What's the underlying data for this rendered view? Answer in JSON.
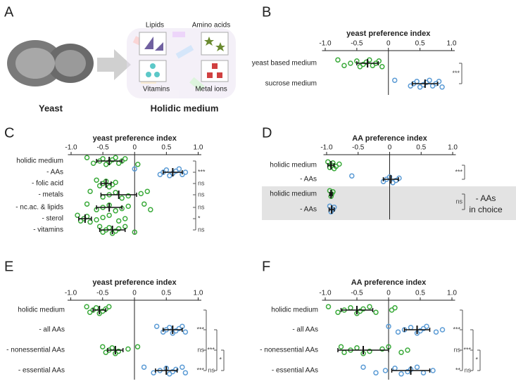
{
  "panel_a": {
    "letter": "A",
    "yeast": "Yeast",
    "medium": "Holidic medium",
    "components": [
      "Lipids",
      "Amino acids",
      "Vitamins",
      "Metal ions"
    ]
  },
  "chart_data": [
    {
      "type": "strip",
      "panel": "B",
      "title": "yeast preference index",
      "xlim": [
        -1.05,
        1.05
      ],
      "xticks": [
        {
          "value": -1,
          "label": "-1.0"
        },
        -0.5,
        0,
        0.5,
        {
          "value": 1,
          "label": "1.0"
        }
      ],
      "categories": [
        "yeast based medium",
        "sucrose medium"
      ],
      "colors": [
        "#3aaa3a",
        "#5b9bd5"
      ],
      "points": [
        [
          -0.8,
          -0.7,
          -0.6,
          -0.5,
          -0.45,
          -0.4,
          -0.35,
          -0.3,
          -0.25,
          -0.2,
          -0.15,
          -0.1
        ],
        [
          0.1,
          0.35,
          0.4,
          0.45,
          0.5,
          0.55,
          0.6,
          0.65,
          0.7,
          0.75,
          0.8,
          0.85
        ]
      ],
      "means": [
        -0.33,
        0.58
      ],
      "errors": [
        0.17,
        0.2
      ],
      "significance": [
        "***"
      ]
    },
    {
      "type": "strip",
      "panel": "C",
      "title": "yeast preference index",
      "xlim": [
        -1.05,
        1.05
      ],
      "xticks": [
        {
          "value": -1,
          "label": "-1.0"
        },
        -0.5,
        0,
        0.5,
        {
          "value": 1,
          "label": "1.0"
        }
      ],
      "categories": [
        "holidic medium",
        "- AAs",
        "- folic acid",
        "- metals",
        "- nc.ac. & lipids",
        "- sterol",
        "- vitamins"
      ],
      "colors": [
        "#3aaa3a",
        "#5b9bd5",
        "#3aaa3a",
        "#3aaa3a",
        "#3aaa3a",
        "#3aaa3a",
        "#3aaa3a"
      ],
      "points": [
        [
          -0.75,
          -0.65,
          -0.55,
          -0.5,
          -0.45,
          -0.4,
          -0.35,
          -0.3,
          -0.25,
          -0.2,
          -0.15,
          0.05
        ],
        [
          0,
          0.4,
          0.45,
          0.5,
          0.55,
          0.6,
          0.65,
          0.7,
          0.75,
          0.8
        ],
        [
          -0.6,
          -0.55,
          -0.5,
          -0.45,
          -0.4,
          -0.35,
          -0.3
        ],
        [
          -0.7,
          -0.5,
          -0.4,
          -0.3,
          -0.2,
          -0.1,
          0.1,
          0.2
        ],
        [
          -0.75,
          -0.6,
          -0.5,
          -0.4,
          -0.3,
          -0.2,
          -0.1,
          0.15,
          0.25
        ],
        [
          -0.9,
          -0.85,
          -0.8,
          -0.75,
          -0.7,
          -0.6,
          -0.5,
          -0.4,
          -0.25,
          -0.15
        ],
        [
          -0.55,
          -0.5,
          -0.45,
          -0.4,
          -0.35,
          -0.3,
          -0.25,
          -0.15,
          0
        ]
      ],
      "means": [
        -0.4,
        0.6,
        -0.45,
        -0.25,
        -0.4,
        -0.78,
        -0.35
      ],
      "errors": [
        0.2,
        0.15,
        0.08,
        0.28,
        0.2,
        0.1,
        0.2
      ],
      "significance": [
        "***",
        "ns",
        "ns",
        "ns",
        "*",
        "ns"
      ]
    },
    {
      "type": "strip",
      "panel": "D",
      "title": "AA preference index",
      "xlim": [
        -1.05,
        1.05
      ],
      "xticks": [
        {
          "value": -1,
          "label": "-1.0"
        },
        -0.5,
        0,
        0.5,
        {
          "value": 1,
          "label": "1.0"
        }
      ],
      "categories": [
        "holidic medium",
        "- AAs",
        "holidic medium",
        "- AAs"
      ],
      "colors": [
        "#3aaa3a",
        "#5b9bd5",
        "#3aaa3a",
        "#5b9bd5"
      ],
      "points": [
        [
          -0.98,
          -0.95,
          -0.92,
          -0.9,
          -0.88,
          -0.85,
          -0.8
        ],
        [
          -0.6,
          -0.1,
          -0.05,
          0,
          0.05,
          0.1,
          0.15
        ],
        [
          -0.95,
          -0.93,
          -0.92,
          -0.9
        ],
        [
          -0.95,
          -0.93,
          -0.9,
          -0.88
        ]
      ],
      "means": [
        -0.93,
        0.02,
        -0.93,
        -0.92
      ],
      "errors": [
        0.05,
        0.12,
        0.02,
        0.04
      ],
      "significance": [
        "***",
        "ns"
      ],
      "annotation": [
        "- AAs",
        "in choice"
      ]
    },
    {
      "type": "strip",
      "panel": "E",
      "title": "yeast preference index",
      "xlim": [
        -1.05,
        1.05
      ],
      "xticks": [
        {
          "value": -1,
          "label": "-1.0"
        },
        -0.5,
        0,
        0.5,
        {
          "value": 1,
          "label": "1.0"
        }
      ],
      "categories": [
        "holidic medium",
        "- all AAs",
        "- nonessential AAs",
        "- essential AAs"
      ],
      "colors": [
        "#3aaa3a",
        "#5b9bd5",
        "#3aaa3a",
        "#5b9bd5"
      ],
      "points": [
        [
          -0.75,
          -0.7,
          -0.65,
          -0.6,
          -0.55,
          -0.5,
          -0.45,
          -0.4
        ],
        [
          0.35,
          0.45,
          0.5,
          0.55,
          0.6,
          0.65,
          0.7,
          0.75,
          0.8
        ],
        [
          -0.5,
          -0.45,
          -0.4,
          -0.35,
          -0.3,
          -0.25,
          -0.1,
          0.05
        ],
        [
          0.15,
          0.3,
          0.4,
          0.5,
          0.55,
          0.6,
          0.65,
          0.75,
          0.8
        ]
      ],
      "means": [
        -0.55,
        0.6,
        -0.3,
        0.5
      ],
      "errors": [
        0.1,
        0.15,
        0.12,
        0.17
      ],
      "significance": [
        "***",
        "ns",
        "***",
        "***",
        "ns",
        "*"
      ]
    },
    {
      "type": "strip",
      "panel": "F",
      "title": "AA preference index",
      "xlim": [
        -1.05,
        1.05
      ],
      "xticks": [
        {
          "value": -1,
          "label": "-1.0"
        },
        -0.5,
        0,
        0.5,
        {
          "value": 1,
          "label": "1.0"
        }
      ],
      "categories": [
        "holidic medium",
        "- all AAs",
        "- nonessential AAs",
        "- essential AAs"
      ],
      "colors": [
        "#3aaa3a",
        "#5b9bd5",
        "#3aaa3a",
        "#5b9bd5"
      ],
      "points": [
        [
          -0.95,
          -0.8,
          -0.7,
          -0.6,
          -0.5,
          -0.45,
          -0.4,
          -0.3,
          -0.2,
          0.05,
          0.1
        ],
        [
          0,
          0.15,
          0.25,
          0.35,
          0.45,
          0.5,
          0.55,
          0.6,
          0.75,
          0.85
        ],
        [
          -0.75,
          -0.7,
          -0.6,
          -0.5,
          -0.4,
          -0.3,
          -0.1,
          0,
          0.2,
          0.3
        ],
        [
          -0.4,
          -0.2,
          -0.05,
          0.1,
          0.2,
          0.3,
          0.35,
          0.45,
          0.55,
          0.7
        ]
      ],
      "means": [
        -0.5,
        0.45,
        -0.4,
        0.35
      ],
      "errors": [
        0.25,
        0.2,
        0.4,
        0.3
      ],
      "significance": [
        "***",
        "ns",
        "**",
        "***",
        "ns",
        "*"
      ]
    }
  ]
}
